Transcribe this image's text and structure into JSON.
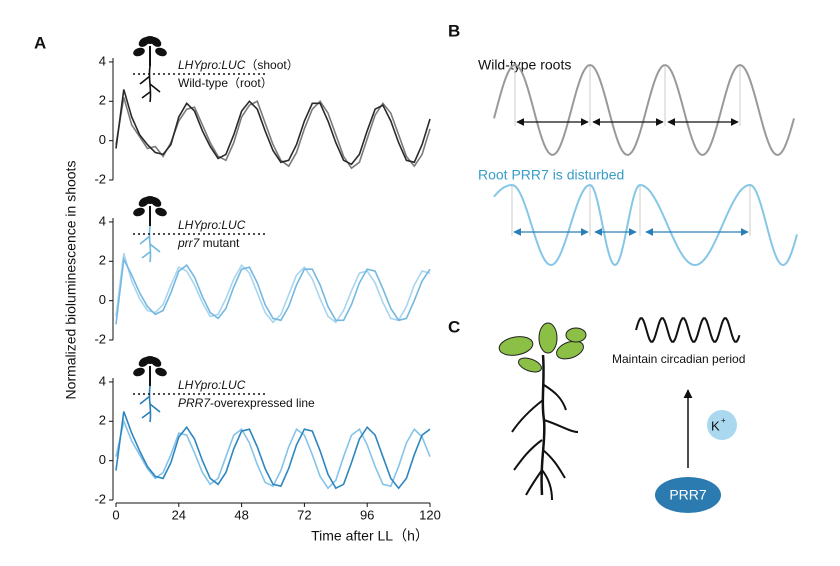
{
  "panel_a": {
    "label": "A"
  },
  "chart_data": [
    {
      "type": "line",
      "label_lines": [
        [
          {
            "text": "LHYpro:LUC",
            "italic": true
          },
          {
            "text": "（shoot）",
            "italic": false
          }
        ],
        [
          {
            "text": "Wild-type（root）",
            "italic": false
          }
        ]
      ],
      "x": [
        0,
        3,
        6,
        9,
        12,
        15,
        18,
        21,
        24,
        27,
        30,
        33,
        36,
        39,
        42,
        45,
        48,
        51,
        54,
        57,
        60,
        63,
        66,
        69,
        72,
        75,
        78,
        81,
        84,
        87,
        90,
        93,
        96,
        99,
        102,
        105,
        108,
        111,
        114,
        117,
        120
      ],
      "series": [
        {
          "color": "#7a7a7a",
          "values": [
            -0.2,
            2.2,
            0.8,
            0.2,
            -0.4,
            -0.3,
            -0.8,
            -0.1,
            1.0,
            1.6,
            1.7,
            0.8,
            -0.1,
            -0.8,
            -1.0,
            -0.1,
            1.2,
            1.8,
            2.0,
            0.9,
            -0.2,
            -1.0,
            -1.3,
            -0.6,
            0.6,
            1.6,
            2.0,
            1.4,
            0.3,
            -0.8,
            -1.4,
            -1.1,
            0.1,
            1.3,
            1.9,
            1.4,
            0.3,
            -0.8,
            -1.3,
            -0.7,
            0.6
          ]
        },
        {
          "color": "#2a2a2a",
          "values": [
            -0.4,
            2.6,
            1.2,
            0.3,
            -0.2,
            -0.6,
            -0.7,
            -0.2,
            1.2,
            1.9,
            1.5,
            0.5,
            -0.3,
            -0.9,
            -0.7,
            0.3,
            1.5,
            2.0,
            1.6,
            0.5,
            -0.5,
            -1.1,
            -1.0,
            -0.2,
            1.0,
            1.9,
            1.9,
            1.0,
            -0.1,
            -1.0,
            -1.2,
            -0.7,
            0.5,
            1.6,
            1.8,
            1.0,
            -0.1,
            -1.0,
            -1.1,
            -0.2,
            1.1
          ]
        }
      ],
      "xlim": [
        0,
        120
      ],
      "ylim": [
        -2,
        4.2
      ],
      "yticks": [
        -2,
        0,
        2,
        4
      ],
      "root_color": "#111111"
    },
    {
      "type": "line",
      "label_lines": [
        [
          {
            "text": "LHYpro:LUC",
            "italic": true
          }
        ],
        [
          {
            "text": "prr7",
            "italic": true
          },
          {
            "text": " mutant",
            "italic": false
          }
        ]
      ],
      "ylabel": "Normalized bioluminescence in shoots",
      "x": [
        0,
        3,
        6,
        9,
        12,
        15,
        18,
        21,
        24,
        27,
        30,
        33,
        36,
        39,
        42,
        45,
        48,
        51,
        54,
        57,
        60,
        63,
        66,
        69,
        72,
        75,
        78,
        81,
        84,
        87,
        90,
        93,
        96,
        99,
        102,
        105,
        108,
        111,
        114,
        117,
        120
      ],
      "series": [
        {
          "color": "#a9d5ee",
          "values": [
            -0.8,
            2.4,
            1.0,
            0.1,
            -0.5,
            -0.6,
            -0.2,
            0.8,
            1.7,
            1.5,
            0.8,
            -0.1,
            -0.8,
            -0.7,
            0.1,
            1.1,
            1.8,
            1.4,
            0.4,
            -0.6,
            -1.1,
            -0.7,
            0.3,
            1.3,
            1.7,
            1.1,
            0.1,
            -0.8,
            -1.1,
            -0.5,
            0.5,
            1.4,
            1.5,
            0.9,
            -0.1,
            -0.9,
            -1.0,
            -0.3,
            0.8,
            1.5,
            1.4
          ]
        },
        {
          "color": "#74b8e0",
          "values": [
            -1.2,
            2.1,
            1.3,
            0.4,
            -0.3,
            -0.7,
            -0.5,
            0.4,
            1.5,
            1.8,
            1.2,
            0.2,
            -0.6,
            -0.9,
            -0.4,
            0.7,
            1.6,
            1.7,
            0.9,
            -0.2,
            -0.9,
            -1.0,
            -0.3,
            0.8,
            1.6,
            1.6,
            0.8,
            -0.3,
            -1.0,
            -1.0,
            -0.2,
            0.9,
            1.6,
            1.5,
            0.6,
            -0.4,
            -1.0,
            -0.9,
            0.0,
            1.0,
            1.6
          ]
        }
      ],
      "xlim": [
        0,
        120
      ],
      "ylim": [
        -2,
        4.2
      ],
      "yticks": [
        -2,
        0,
        2,
        4
      ],
      "root_color": "#6fb6e0"
    },
    {
      "type": "line",
      "label_lines": [
        [
          {
            "text": "LHYpro:LUC",
            "italic": true
          }
        ],
        [
          {
            "text": "PRR7",
            "italic": true
          },
          {
            "text": "-overexpressed line",
            "italic": false
          }
        ]
      ],
      "xlabel": "Time after LL（h）",
      "x": [
        0,
        3,
        6,
        9,
        12,
        15,
        18,
        21,
        24,
        27,
        30,
        33,
        36,
        39,
        42,
        45,
        48,
        51,
        54,
        57,
        60,
        63,
        66,
        69,
        72,
        75,
        78,
        81,
        84,
        87,
        90,
        93,
        96,
        99,
        102,
        105,
        108,
        111,
        114,
        117,
        120
      ],
      "series": [
        {
          "color": "#86c3e8",
          "values": [
            0.2,
            2.0,
            1.0,
            0.3,
            -0.4,
            -0.9,
            -0.6,
            0.3,
            1.4,
            1.3,
            0.4,
            -0.6,
            -1.2,
            -0.9,
            0.2,
            1.3,
            1.6,
            0.9,
            -0.2,
            -1.1,
            -1.3,
            -0.5,
            0.7,
            1.6,
            1.3,
            0.3,
            -0.8,
            -1.4,
            -1.0,
            0.2,
            1.3,
            1.6,
            0.8,
            -0.3,
            -1.2,
            -1.3,
            -0.3,
            0.9,
            1.6,
            1.2,
            0.2
          ]
        },
        {
          "color": "#2f86bf",
          "values": [
            -0.5,
            2.5,
            1.4,
            0.5,
            -0.3,
            -0.8,
            -0.9,
            -0.1,
            1.2,
            1.7,
            1.1,
            0.0,
            -0.9,
            -1.2,
            -0.6,
            0.6,
            1.5,
            1.6,
            0.7,
            -0.4,
            -1.2,
            -1.3,
            -0.4,
            0.8,
            1.6,
            1.5,
            0.5,
            -0.7,
            -1.4,
            -1.2,
            -0.1,
            1.1,
            1.7,
            1.3,
            0.2,
            -0.9,
            -1.4,
            -0.9,
            0.3,
            1.3,
            1.6
          ]
        }
      ],
      "xlim": [
        0,
        120
      ],
      "ylim": [
        -2,
        4.2
      ],
      "yticks": [
        -2,
        0,
        2,
        4
      ],
      "xticks": [
        0,
        24,
        48,
        72,
        96,
        120
      ],
      "root_color": "#2a7fb8"
    }
  ],
  "panel_b": {
    "label": "B",
    "wild_type": "Wild-type roots",
    "disturbed": "Root PRR7 is disturbed"
  },
  "panel_c": {
    "label": "C",
    "caption": "Maintain circadian period",
    "ion": "K",
    "ion_charge": "+",
    "protein": "PRR7"
  }
}
